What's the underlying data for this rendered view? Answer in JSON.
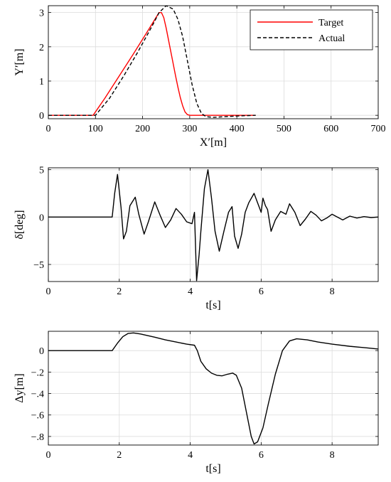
{
  "chart_data": [
    {
      "type": "line",
      "xlabel": "X′[m]",
      "ylabel": "Y′[m]",
      "xlim": [
        0,
        700
      ],
      "ylim": [
        -0.1,
        3.2
      ],
      "xticks": [
        0,
        100,
        200,
        300,
        400,
        500,
        600,
        700
      ],
      "yticks": [
        0,
        1,
        2,
        3
      ],
      "grid": true,
      "legend": "top-right",
      "series": [
        {
          "name": "Target",
          "color": "#ff0000",
          "style": "solid",
          "x": [
            0,
            95,
            120,
            150,
            180,
            210,
            235,
            240,
            245,
            250,
            255,
            260,
            265,
            270,
            275,
            280,
            285,
            290,
            295,
            300,
            440
          ],
          "y": [
            0,
            0,
            0.5,
            1.14,
            1.78,
            2.44,
            3.0,
            3.0,
            2.85,
            2.55,
            2.2,
            1.85,
            1.5,
            1.15,
            0.82,
            0.52,
            0.28,
            0.1,
            0.02,
            0,
            0
          ]
        },
        {
          "name": "Actual",
          "color": "#000000",
          "style": "dashed",
          "x": [
            0,
            100,
            130,
            160,
            190,
            220,
            235,
            250,
            265,
            275,
            285,
            295,
            305,
            315,
            325,
            335,
            350,
            375,
            400,
            440
          ],
          "y": [
            0,
            0,
            0.5,
            1.15,
            1.85,
            2.6,
            3.0,
            3.2,
            3.1,
            2.8,
            2.3,
            1.6,
            0.9,
            0.35,
            0.05,
            -0.04,
            -0.06,
            -0.04,
            -0.02,
            0
          ]
        }
      ]
    },
    {
      "type": "line",
      "xlabel": "t[s]",
      "ylabel": "δ[deg]",
      "xlim": [
        0,
        9.3
      ],
      "ylim": [
        -6.8,
        5.2
      ],
      "xticks": [
        0,
        2,
        4,
        6,
        8
      ],
      "yticks": [
        -5,
        0,
        5
      ],
      "grid": true,
      "series": [
        {
          "color": "#000000",
          "x": [
            0,
            1.8,
            1.87,
            1.95,
            2.05,
            2.12,
            2.2,
            2.3,
            2.45,
            2.55,
            2.7,
            2.82,
            3.0,
            3.15,
            3.3,
            3.45,
            3.6,
            3.75,
            3.9,
            4.05,
            4.12,
            4.18,
            4.25,
            4.3,
            4.4,
            4.5,
            4.6,
            4.7,
            4.82,
            4.95,
            5.08,
            5.18,
            5.25,
            5.35,
            5.45,
            5.55,
            5.65,
            5.8,
            5.9,
            6.0,
            6.05,
            6.12,
            6.18,
            6.28,
            6.4,
            6.55,
            6.7,
            6.8,
            6.95,
            7.1,
            7.25,
            7.4,
            7.55,
            7.7,
            7.85,
            8.0,
            8.15,
            8.3,
            8.5,
            8.7,
            8.9,
            9.1,
            9.3
          ],
          "y": [
            0,
            0,
            2.5,
            4.5,
            1.0,
            -2.3,
            -1.5,
            1.2,
            2.1,
            0.3,
            -1.8,
            -0.5,
            1.6,
            0.2,
            -1.1,
            -0.3,
            0.9,
            0.3,
            -0.5,
            -0.7,
            0.5,
            -6.7,
            -4.0,
            -1.5,
            3.0,
            5.0,
            2.0,
            -1.5,
            -3.6,
            -1.5,
            0.5,
            1.1,
            -2.0,
            -3.3,
            -1.8,
            0.5,
            1.5,
            2.5,
            1.5,
            0.5,
            2.0,
            1.2,
            0.8,
            -1.5,
            -0.3,
            0.6,
            0.3,
            1.4,
            0.5,
            -0.9,
            -0.2,
            0.6,
            0.2,
            -0.4,
            -0.1,
            0.3,
            0.0,
            -0.3,
            0.1,
            -0.1,
            0.05,
            -0.05,
            0.0
          ]
        }
      ]
    },
    {
      "type": "line",
      "xlabel": "t[s]",
      "ylabel": "Δy[m]",
      "xlim": [
        0,
        9.3
      ],
      "ylim": [
        -0.88,
        0.18
      ],
      "xticks": [
        0,
        2,
        4,
        6,
        8
      ],
      "yticks": [
        -0.8,
        -0.6,
        -0.4,
        -0.2,
        0
      ],
      "grid": true,
      "series": [
        {
          "color": "#000000",
          "x": [
            0,
            1.8,
            1.95,
            2.1,
            2.25,
            2.4,
            2.6,
            2.8,
            3.0,
            3.3,
            3.6,
            3.9,
            4.12,
            4.2,
            4.3,
            4.45,
            4.6,
            4.75,
            4.9,
            5.05,
            5.2,
            5.3,
            5.45,
            5.6,
            5.72,
            5.8,
            5.9,
            6.05,
            6.2,
            6.4,
            6.6,
            6.8,
            7.0,
            7.3,
            7.6,
            8.0,
            8.5,
            9.0,
            9.3
          ],
          "y": [
            0,
            0,
            0.07,
            0.13,
            0.16,
            0.165,
            0.155,
            0.14,
            0.125,
            0.1,
            0.08,
            0.06,
            0.05,
            0.0,
            -0.1,
            -0.17,
            -0.21,
            -0.23,
            -0.235,
            -0.22,
            -0.21,
            -0.23,
            -0.35,
            -0.6,
            -0.8,
            -0.87,
            -0.85,
            -0.72,
            -0.5,
            -0.22,
            0.0,
            0.09,
            0.11,
            0.1,
            0.08,
            0.06,
            0.04,
            0.025,
            0.015
          ]
        }
      ]
    }
  ],
  "legend": {
    "target_label": "Target",
    "actual_label": "Actual"
  }
}
